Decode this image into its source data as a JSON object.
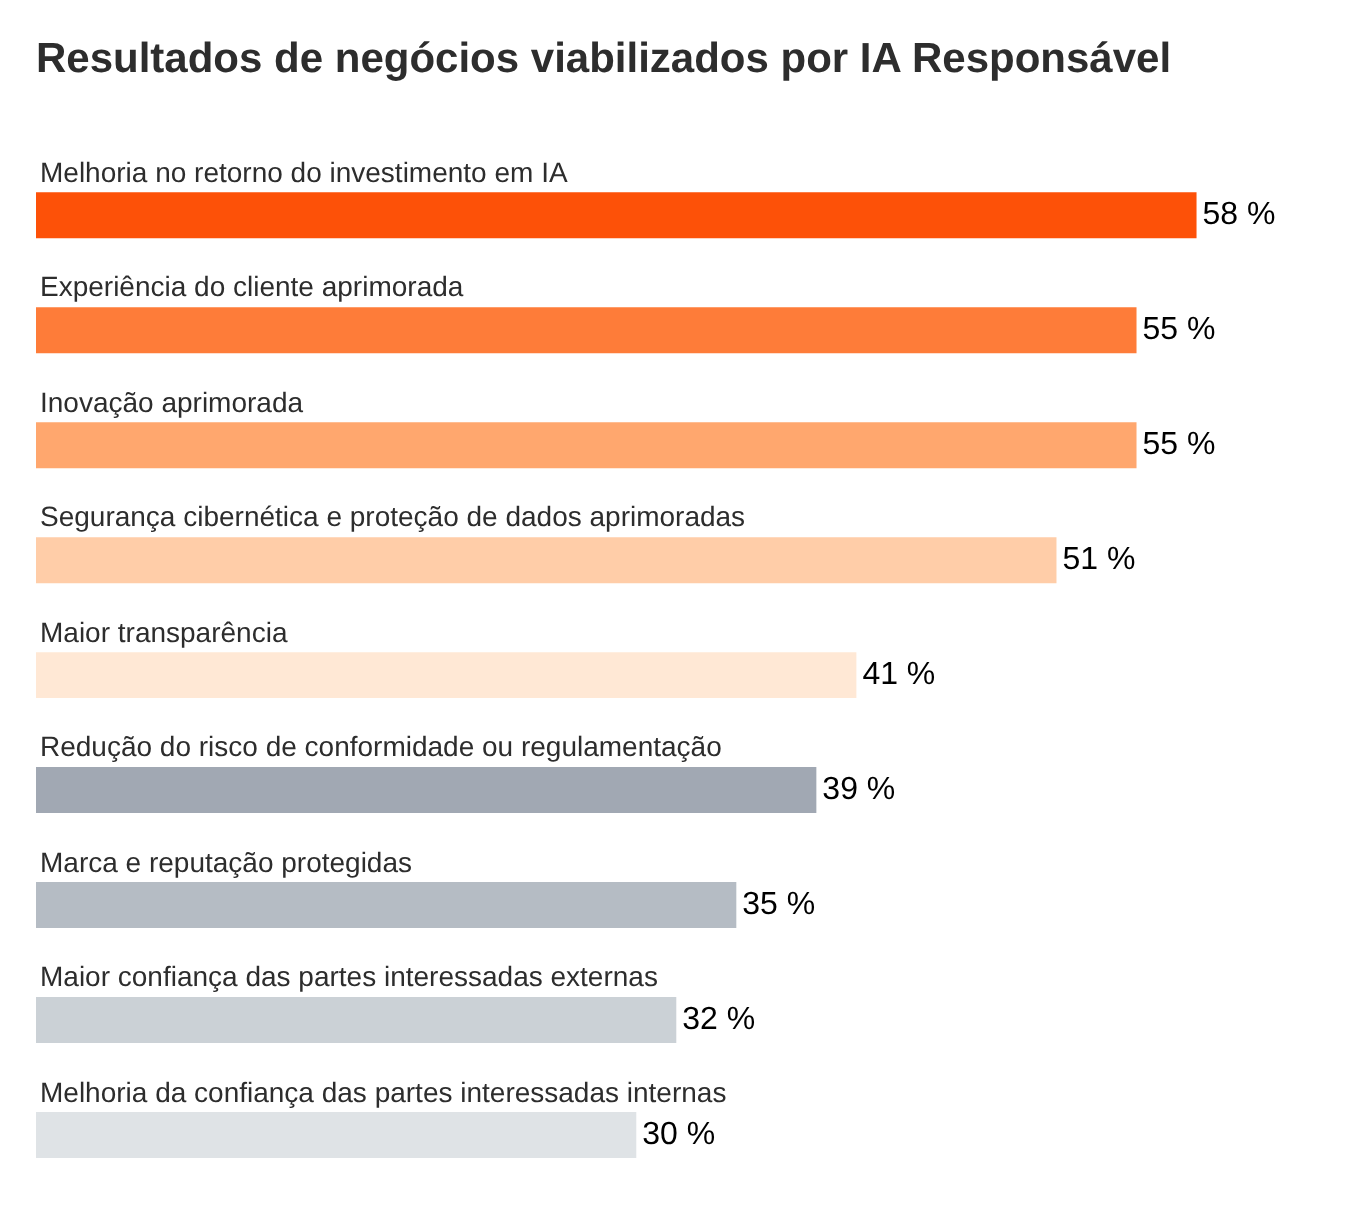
{
  "chart_data": {
    "type": "bar",
    "orientation": "horizontal",
    "title": "Resultados de negócios viabilizados por IA Responsável",
    "categories": [
      "Melhoria no retorno do investimento em IA",
      "Experiência do cliente aprimorada",
      "Inovação aprimorada",
      "Segurança cibernética e proteção de dados aprimoradas",
      "Maior transparência",
      "Redução do risco de conformidade ou regulamentação",
      "Marca e reputação protegidas",
      "Maior confiança das partes interessadas externas",
      "Melhoria da confiança das partes interessadas internas"
    ],
    "values": [
      58,
      55,
      55,
      51,
      41,
      39,
      35,
      32,
      30
    ],
    "value_labels": [
      "58 %",
      "55 %",
      "55 %",
      "51 %",
      "41 %",
      "39 %",
      "35 %",
      "32 %",
      "30 %"
    ],
    "colors": [
      "#fd5108",
      "#fe7c39",
      "#ffa76e",
      "#ffcda8",
      "#ffe8d5",
      "#a1a8b3",
      "#b5bcc4",
      "#cbd1d6",
      "#dfe3e6"
    ]
  }
}
